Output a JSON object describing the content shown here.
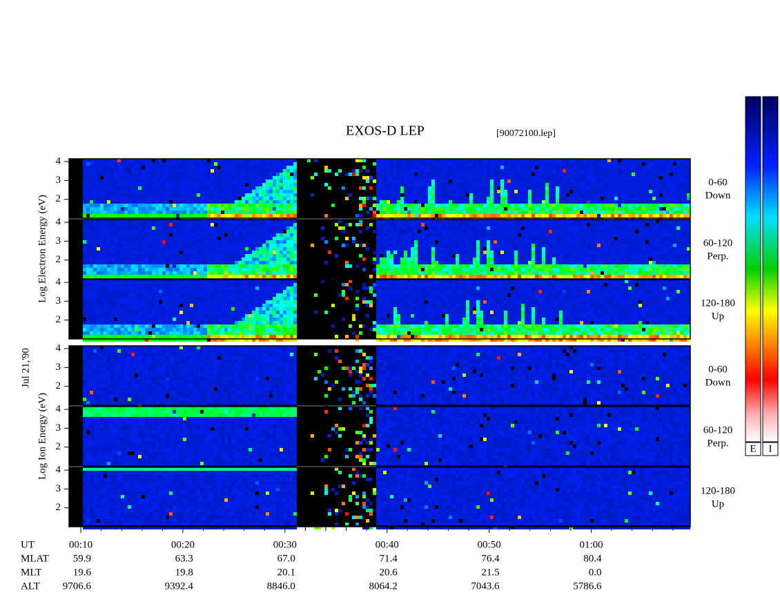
{
  "chart_data": {
    "type": "spectrogram",
    "title": "EXOS-D LEP",
    "subtitle": "[90072100.lep]",
    "date_label": "Jul 21,'90",
    "xlim": [
      8.85,
      69.7
    ],
    "xticks": [
      {
        "value": 10,
        "label": "00:10"
      },
      {
        "value": 20,
        "label": "00:20"
      },
      {
        "value": 30,
        "label": "00:30"
      },
      {
        "value": 40,
        "label": "00:40"
      },
      {
        "value": 50,
        "label": "00:50"
      },
      {
        "value": 60,
        "label": "01:00"
      }
    ],
    "xticks_minor": [
      12,
      14,
      16,
      18,
      22,
      24,
      26,
      28,
      32,
      34,
      36,
      38,
      42,
      44,
      46,
      48,
      52,
      54,
      56,
      58,
      62,
      64,
      66,
      68
    ],
    "groups": [
      {
        "kind": "electron",
        "label": "Log Electron Energy (eV)",
        "panels": [
          {
            "ylim": [
              1,
              4.15
            ],
            "yticks": [
              2,
              3,
              4
            ],
            "range": "0-60",
            "direction": "Down"
          },
          {
            "ylim": [
              1,
              4.15
            ],
            "yticks": [
              2,
              3,
              4
            ],
            "range": "60-120",
            "direction": "Perp."
          },
          {
            "ylim": [
              1,
              4.15
            ],
            "yticks": [
              2,
              3,
              4
            ],
            "range": "120-180",
            "direction": "Up"
          }
        ]
      },
      {
        "kind": "ion",
        "label": "Log Ion Energy (eV)",
        "panels": [
          {
            "ylim": [
              1,
              4.15
            ],
            "yticks": [
              2,
              3,
              4
            ],
            "range": "0-60",
            "direction": "Down"
          },
          {
            "ylim": [
              1,
              4.15
            ],
            "yticks": [
              2,
              3,
              4
            ],
            "range": "60-120",
            "direction": "Perp."
          },
          {
            "ylim": [
              1,
              4.15
            ],
            "yticks": [
              2,
              3,
              4
            ],
            "range": "120-180",
            "direction": "Up"
          }
        ]
      }
    ],
    "ephemeris": {
      "ut_label": "UT",
      "rows": [
        {
          "label": "MLAT",
          "values": [
            "59.9",
            "63.3",
            "67.0",
            "71.4",
            "76.4",
            "80.4"
          ]
        },
        {
          "label": "MLT",
          "values": [
            "19.6",
            "19.8",
            "20.1",
            "20.6",
            "21.5",
            "0.0"
          ]
        },
        {
          "label": "ALT",
          "values": [
            "9706.6",
            "9392.4",
            "8846.0",
            "8064.2",
            "7043.6",
            "5786.6"
          ]
        }
      ]
    },
    "colorbars": [
      "E",
      "I"
    ]
  }
}
